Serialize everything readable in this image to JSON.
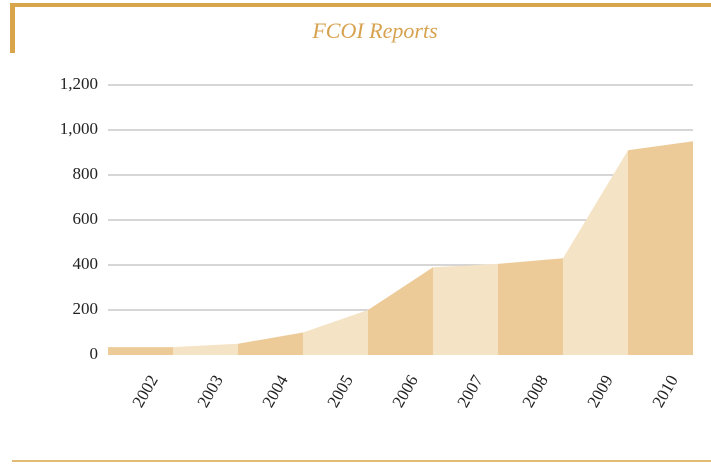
{
  "chart_data": {
    "type": "area",
    "title": "FCOI Reports",
    "categories": [
      "2002",
      "2003",
      "2004",
      "2005",
      "2006",
      "2007",
      "2008",
      "2009",
      "2010"
    ],
    "values": [
      35,
      50,
      100,
      200,
      390,
      405,
      430,
      910,
      950
    ],
    "colors": [
      "#edcb98",
      "#f5e3c6"
    ],
    "ylim": [
      0,
      1200
    ],
    "yticks": [
      0,
      200,
      400,
      600,
      800,
      {
        "value": 1000,
        "label": "1,000"
      },
      {
        "value": 1200,
        "label": "1,200"
      }
    ],
    "grid": true
  }
}
